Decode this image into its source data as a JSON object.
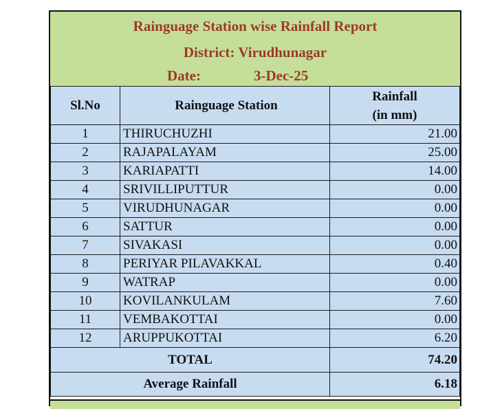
{
  "report": {
    "title": "Rainguage Station wise Rainfall Report",
    "district": "District: Virudhunagar",
    "date_label": "Date:",
    "date_value": "3-Dec-25"
  },
  "table": {
    "headers": {
      "slno": "Sl.No",
      "station": "Rainguage Station",
      "rainfall_1": "Rainfall",
      "rainfall_2": "(in mm)"
    },
    "rows": [
      {
        "slno": "1",
        "station": "THIRUCHUZHI",
        "rainfall": "21.00"
      },
      {
        "slno": "2",
        "station": "RAJAPALAYAM",
        "rainfall": "25.00"
      },
      {
        "slno": "3",
        "station": "KARIAPATTI",
        "rainfall": "14.00"
      },
      {
        "slno": "4",
        "station": "SRIVILLIPUTTUR",
        "rainfall": "0.00"
      },
      {
        "slno": "5",
        "station": "VIRUDHUNAGAR",
        "rainfall": "0.00"
      },
      {
        "slno": "6",
        "station": "SATTUR",
        "rainfall": "0.00"
      },
      {
        "slno": "7",
        "station": "SIVAKASI",
        "rainfall": "0.00"
      },
      {
        "slno": "8",
        "station": "PERIYAR PILAVAKKAL",
        "rainfall": "0.40"
      },
      {
        "slno": "9",
        "station": "WATRAP",
        "rainfall": "0.00"
      },
      {
        "slno": "10",
        "station": "KOVILANKULAM",
        "rainfall": "7.60"
      },
      {
        "slno": "11",
        "station": "VEMBAKOTTAI",
        "rainfall": "0.00"
      },
      {
        "slno": "12",
        "station": "ARUPPUKOTTAI",
        "rainfall": "6.20"
      }
    ],
    "total_label": "TOTAL",
    "total_value": "74.20",
    "average_label": "Average Rainfall",
    "average_value": "6.18"
  }
}
